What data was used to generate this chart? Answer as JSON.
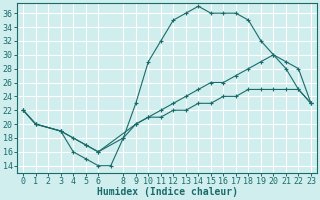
{
  "xlabel": "Humidex (Indice chaleur)",
  "bg_color": "#d0eeee",
  "grid_color": "#ffffff",
  "line_color": "#1a6b6b",
  "xlim": [
    -0.5,
    23.5
  ],
  "ylim": [
    13,
    37.5
  ],
  "xticks": [
    0,
    1,
    2,
    3,
    4,
    5,
    6,
    8,
    9,
    10,
    11,
    12,
    13,
    14,
    15,
    16,
    17,
    18,
    19,
    20,
    21,
    22,
    23
  ],
  "yticks": [
    14,
    16,
    18,
    20,
    22,
    24,
    26,
    28,
    30,
    32,
    34,
    36
  ],
  "line1_x": [
    0,
    1,
    3,
    4,
    5,
    6,
    7,
    8,
    9,
    10,
    11,
    12,
    13,
    14,
    15,
    16,
    17,
    18,
    19,
    20,
    21,
    22,
    23
  ],
  "line1_y": [
    22,
    20,
    19,
    16,
    15,
    14,
    14,
    18,
    23,
    29,
    32,
    35,
    36,
    37,
    36,
    36,
    36,
    35,
    32,
    30,
    28,
    25,
    23
  ],
  "line2_x": [
    0,
    1,
    3,
    4,
    5,
    6,
    8,
    9,
    10,
    11,
    12,
    13,
    14,
    15,
    16,
    17,
    18,
    19,
    20,
    21,
    22,
    23
  ],
  "line2_y": [
    22,
    20,
    19,
    18,
    17,
    16,
    18,
    20,
    21,
    22,
    23,
    24,
    25,
    26,
    26,
    27,
    28,
    29,
    30,
    29,
    28,
    23
  ],
  "line3_x": [
    0,
    1,
    3,
    5,
    6,
    9,
    10,
    11,
    12,
    13,
    14,
    15,
    16,
    17,
    18,
    19,
    20,
    21,
    22,
    23
  ],
  "line3_y": [
    22,
    20,
    19,
    17,
    16,
    20,
    21,
    21,
    22,
    22,
    23,
    23,
    24,
    24,
    25,
    25,
    25,
    25,
    25,
    23
  ],
  "font_family": "monospace",
  "font_size": 6,
  "xlabel_fontsize": 7
}
